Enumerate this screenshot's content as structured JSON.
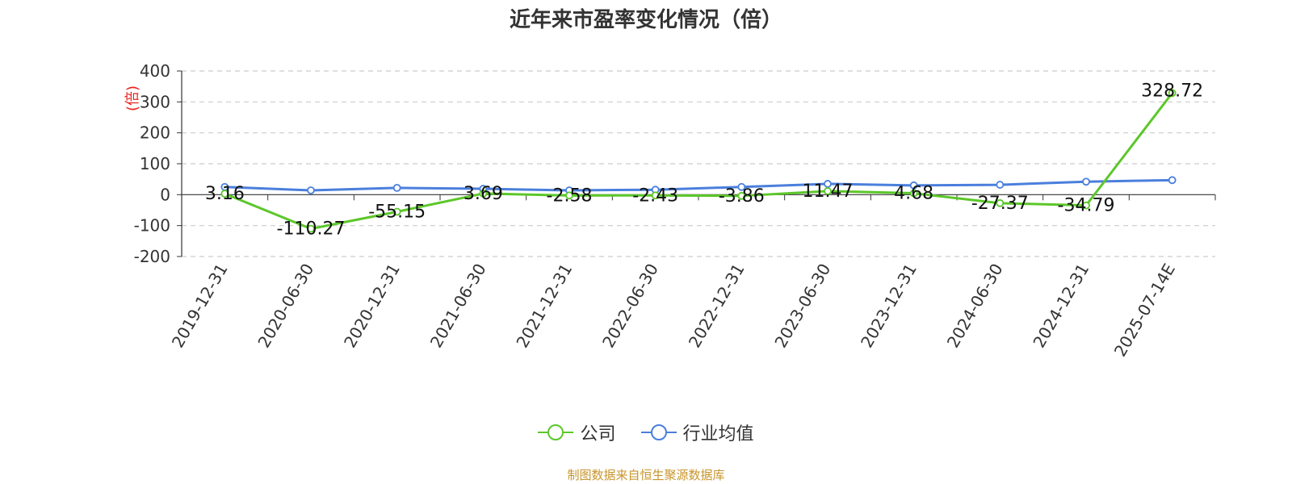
{
  "title": "近年来市盈率变化情况（倍）",
  "source": "制图数据来自恒生聚源数据库",
  "legend": {
    "company": "公司",
    "industry": "行业均值"
  },
  "colors": {
    "company": "#5cc72a",
    "industry": "#4a7fdc",
    "unit": "#e8231c"
  },
  "chart_data": {
    "type": "line",
    "title": "近年来市盈率变化情况（倍）",
    "ylabel": "(倍)",
    "ylim": [
      -200,
      400
    ],
    "yticks": [
      400,
      300,
      200,
      100,
      0,
      -100,
      -200
    ],
    "grid": true,
    "legend_position": "bottom",
    "categories": [
      "2019-12-31",
      "2020-06-30",
      "2020-12-31",
      "2021-06-30",
      "2021-12-31",
      "2022-06-30",
      "2022-12-31",
      "2023-06-30",
      "2023-12-31",
      "2024-06-30",
      "2024-12-31",
      "2025-07-14E"
    ],
    "series": [
      {
        "name": "公司",
        "color": "#5cc72a",
        "values": [
          3.16,
          -110.27,
          -55.15,
          3.69,
          -2.58,
          -2.43,
          -3.86,
          11.47,
          4.68,
          -27.37,
          -34.79,
          328.72
        ],
        "labels": [
          "3.16",
          "-110.27",
          "-55.15",
          "3.69",
          "-2.58",
          "-2.43",
          "-3.86",
          "11.47",
          "4.68",
          "-27.37",
          "-34.79",
          "328.72"
        ]
      },
      {
        "name": "行业均值",
        "color": "#4a7fdc",
        "values": [
          25,
          14,
          22,
          19,
          14,
          16,
          25,
          35,
          30,
          32,
          42,
          47
        ]
      }
    ]
  }
}
